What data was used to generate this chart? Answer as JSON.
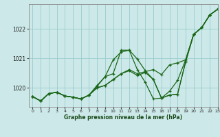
{
  "title": "Graphe pression niveau de la mer (hPa)",
  "bg_color": "#cce8e8",
  "grid_color": "#99cccc",
  "line_color": "#1a6618",
  "xlim": [
    -0.5,
    23
  ],
  "ylim": [
    1019.35,
    1022.85
  ],
  "yticks": [
    1020,
    1021,
    1022
  ],
  "xticks": [
    0,
    1,
    2,
    3,
    4,
    5,
    6,
    7,
    8,
    9,
    10,
    11,
    12,
    13,
    14,
    15,
    16,
    17,
    18,
    19,
    20,
    21,
    22,
    23
  ],
  "series": [
    [
      1019.7,
      1019.55,
      1019.8,
      1019.85,
      1019.72,
      1019.68,
      1019.62,
      1019.75,
      1020.05,
      1020.38,
      1020.95,
      1021.22,
      1021.28,
      1020.62,
      1020.18,
      1019.62,
      1019.65,
      1019.88,
      1020.25,
      1020.95,
      1021.82,
      1022.05,
      1022.48,
      1022.68
    ],
    [
      1019.7,
      1019.55,
      1019.8,
      1019.85,
      1019.72,
      1019.68,
      1019.62,
      1019.75,
      1020.0,
      1020.08,
      1020.28,
      1020.48,
      1020.62,
      1020.48,
      1020.55,
      1020.62,
      1020.45,
      1020.78,
      1020.85,
      1020.95,
      1021.82,
      1022.05,
      1022.48,
      1022.68
    ],
    [
      1019.7,
      1019.55,
      1019.8,
      1019.85,
      1019.72,
      1019.68,
      1019.62,
      1019.75,
      1020.0,
      1020.08,
      1020.28,
      1020.48,
      1020.58,
      1020.42,
      1020.52,
      1020.28,
      1019.65,
      1019.75,
      1019.78,
      1020.88,
      1021.82,
      1022.05,
      1022.48,
      1022.68
    ],
    [
      1019.7,
      1019.55,
      1019.8,
      1019.85,
      1019.72,
      1019.68,
      1019.62,
      1019.75,
      1020.08,
      1020.38,
      1020.48,
      1021.28,
      1021.28,
      1020.98,
      1020.58,
      1020.28,
      1019.65,
      1019.75,
      1019.78,
      1020.88,
      1021.82,
      1022.05,
      1022.48,
      1022.68
    ]
  ]
}
